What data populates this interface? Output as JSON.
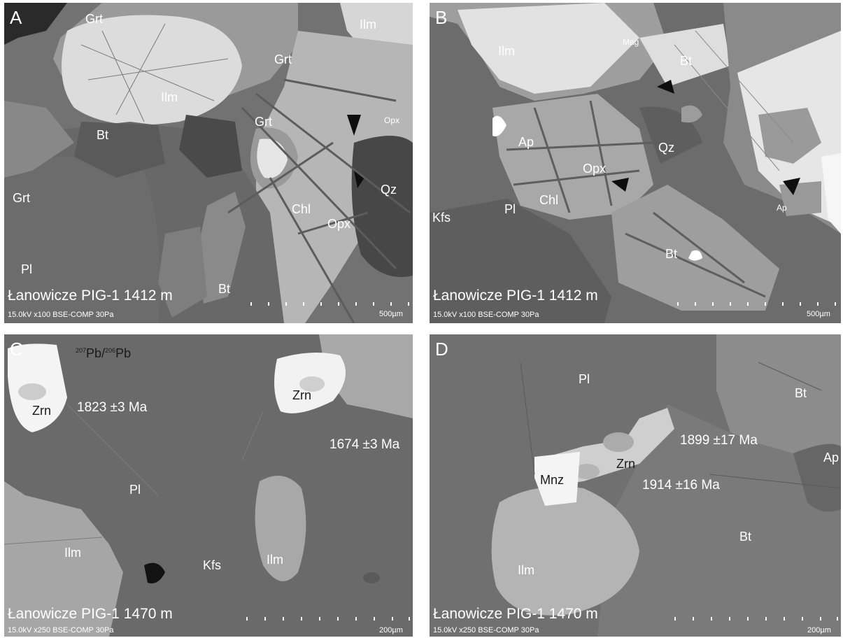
{
  "figure": {
    "panels": [
      {
        "letter": "A",
        "location": "Łanowicze PIG-1 1412 m",
        "metadata": "15.0kV x100 BSE-COMP 30Pa",
        "scale": "500µm",
        "minerals": [
          "Grt",
          "Ilm",
          "Ilm",
          "Grt",
          "Opx",
          "Grt",
          "Bt",
          "Grt",
          "Chl",
          "Opx",
          "Qz",
          "Pl",
          "Bt"
        ]
      },
      {
        "letter": "B",
        "location": "Łanowicze PIG-1 1412 m",
        "metadata": "15.0kV x100 BSE-COMP 30Pa",
        "scale": "500µm",
        "minerals": [
          "Ilm",
          "Mag",
          "Bt",
          "Ap",
          "Qz",
          "Opx",
          "Chl",
          "Pl",
          "Kfs",
          "Bt",
          "Ap"
        ]
      },
      {
        "letter": "C",
        "location": "Łanowicze PIG-1 1470 m",
        "metadata": "15.0kV x250 BSE-COMP 30Pa",
        "scale": "200µm",
        "isotope_label": {
          "num_mass": "207",
          "num_el": "Pb",
          "den_mass": "206",
          "den_el": "Pb"
        },
        "minerals": [
          "Zrn",
          "Zrn",
          "Pl",
          "Ilm",
          "Kfs",
          "Ilm"
        ],
        "ages": [
          "1823 ±3 Ma",
          "1674 ±3 Ma"
        ]
      },
      {
        "letter": "D",
        "location": "Łanowicze PIG-1 1470 m",
        "metadata": "15.0kV x250 BSE-COMP 30Pa",
        "scale": "200µm",
        "minerals": [
          "Pl",
          "Bt",
          "Mnz",
          "Zrn",
          "Ap",
          "Bt",
          "Ilm"
        ],
        "ages": [
          "1899 ±17 Ma",
          "1914 ±16 Ma"
        ]
      }
    ]
  }
}
